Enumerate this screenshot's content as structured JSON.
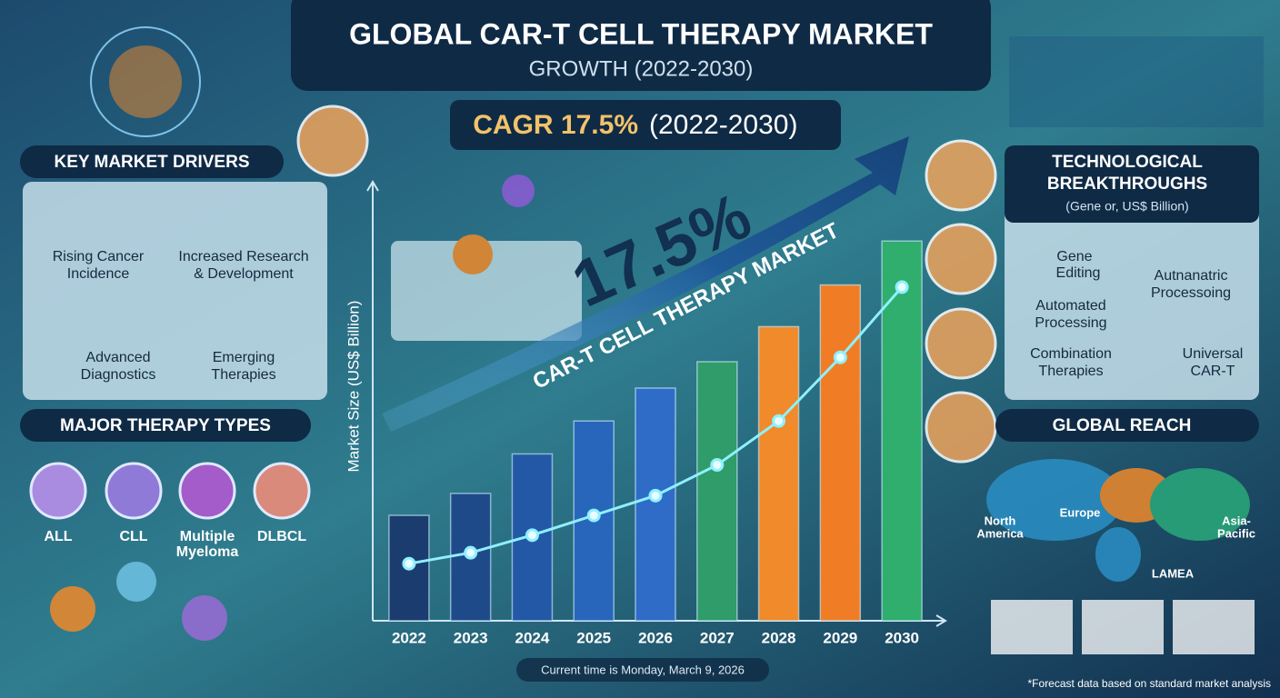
{
  "header": {
    "title": "GLOBAL CAR-T CELL THERAPY MARKET",
    "subtitle": "GROWTH (2022-2030)"
  },
  "cagr_banner": {
    "label": "CAGR 17.5%",
    "period": "(2022-2030)"
  },
  "key_market_drivers": {
    "title": "KEY MARKET DRIVERS",
    "items": [
      [
        "Rising Cancer",
        "Incidence"
      ],
      [
        "Increased Research",
        "& Development"
      ],
      [
        "Advanced",
        "Diagnostics"
      ],
      [
        "Emerging",
        "Therapies"
      ]
    ]
  },
  "major_therapy_types": {
    "title": "MAJOR THERAPY TYPES",
    "items": [
      [
        "ALL"
      ],
      [
        "CLL"
      ],
      [
        "Multiple",
        "Myeloma"
      ],
      [
        "DLBCL"
      ]
    ]
  },
  "technological_breakthroughs": {
    "title": [
      "TECHNOLOGICAL",
      "BREAKTHROUGHS"
    ],
    "subtitle": "(Gene or, US$ Billion)",
    "items": [
      [
        "Gene",
        "Editing"
      ],
      [
        "Autnanatric",
        "Processoing"
      ],
      [
        "Automated",
        "Processing"
      ],
      [
        "Combination",
        "Therapies"
      ],
      [
        "Universal",
        "CAR-T"
      ]
    ]
  },
  "global_reach": {
    "title": "GLOBAL REACH",
    "regions": [
      [
        "North",
        "America"
      ],
      [
        "Europe"
      ],
      [
        "Asia-",
        "Pacific"
      ],
      [
        "LAMEA"
      ]
    ]
  },
  "chart_data": {
    "type": "bar",
    "big_label": "17.5%",
    "arrow_label": "CAR-T CELL THERAPY MARKET",
    "y_label": "Market Size (US$ Billion)",
    "categories": [
      "2022",
      "2023",
      "2024",
      "2025",
      "2026",
      "2027",
      "2028",
      "2029",
      "2030"
    ],
    "ylim": [
      0,
      20
    ],
    "series": [
      {
        "type": "bar",
        "colors": [
          "#1b3c6e",
          "#1f4a8a",
          "#2358a6",
          "#2766bb",
          "#2f6cc8",
          "#2f9c6a",
          "#f08a2a",
          "#f07d26",
          "#2fae6e"
        ],
        "values": [
          4.8,
          5.8,
          7.6,
          9.1,
          10.6,
          11.8,
          13.4,
          15.3,
          17.3
        ]
      },
      {
        "type": "line",
        "color": "#8ff0ff",
        "values": [
          2.6,
          3.1,
          3.9,
          4.8,
          5.7,
          7.1,
          9.1,
          12.0,
          15.2
        ]
      }
    ]
  },
  "footer": {
    "timestamp": "Current time is Monday, March 9, 2026",
    "note": "*Forecast data based on standard market analysis"
  }
}
